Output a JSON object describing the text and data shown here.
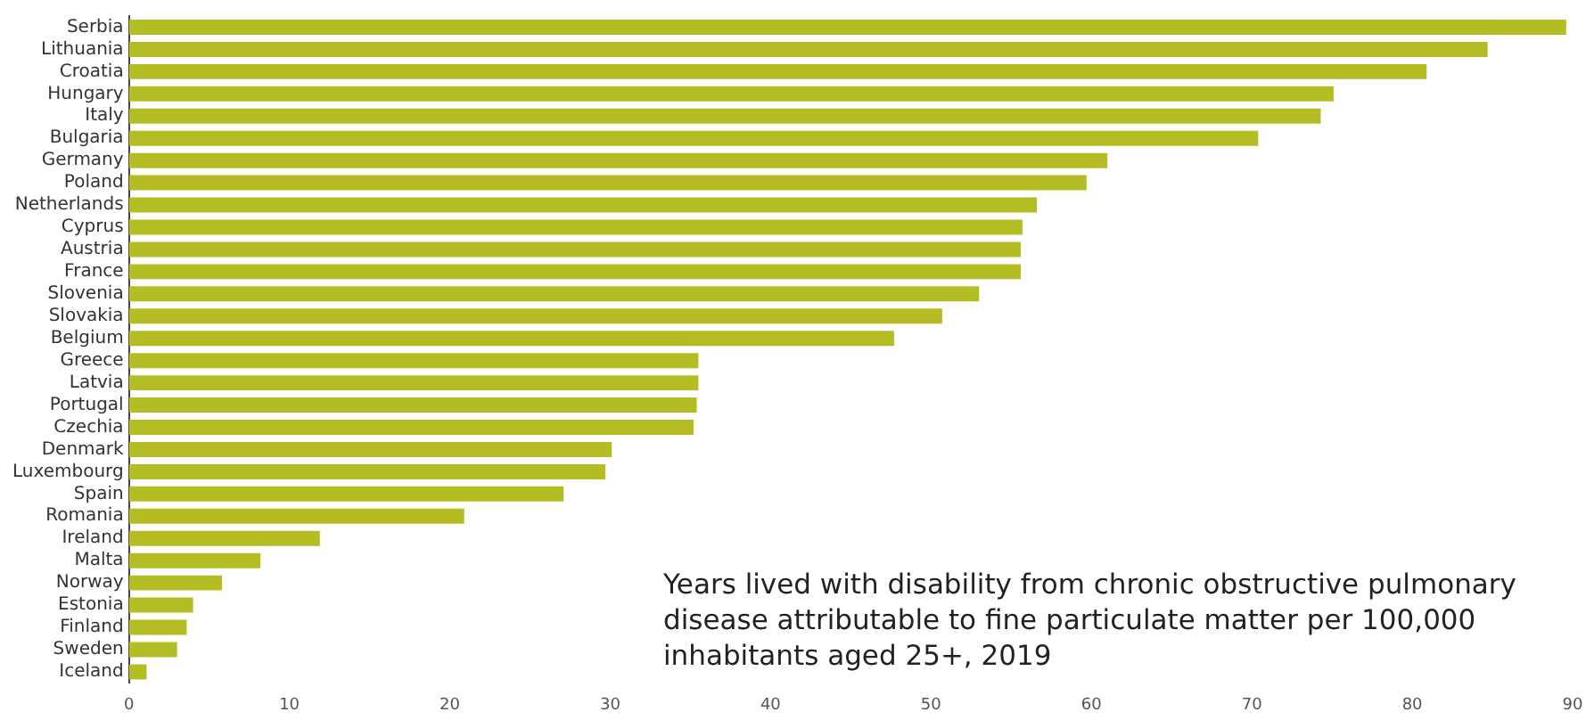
{
  "chart_data": {
    "type": "bar",
    "orientation": "horizontal",
    "categories": [
      "Serbia",
      "Lithuania",
      "Croatia",
      "Hungary",
      "Italy",
      "Bulgaria",
      "Germany",
      "Poland",
      "Netherlands",
      "Cyprus",
      "Austria",
      "France",
      "Slovenia",
      "Slovakia",
      "Belgium",
      "Greece",
      "Latvia",
      "Portugal",
      "Czechia",
      "Denmark",
      "Luxembourg",
      "Spain",
      "Romania",
      "Ireland",
      "Malta",
      "Norway",
      "Estonia",
      "Finland",
      "Sweden",
      "Iceland"
    ],
    "values": [
      89.6,
      84.7,
      80.9,
      75.1,
      74.3,
      70.4,
      61.0,
      59.7,
      56.6,
      55.7,
      55.6,
      55.6,
      53.0,
      50.7,
      47.7,
      35.5,
      35.5,
      35.4,
      35.2,
      30.1,
      29.7,
      27.1,
      20.9,
      11.9,
      8.2,
      5.8,
      4.0,
      3.6,
      3.0,
      1.1
    ],
    "color": "#b5bd24",
    "xlim": [
      0,
      90
    ],
    "xticks": [
      0,
      10,
      20,
      30,
      40,
      50,
      60,
      70,
      80,
      90
    ],
    "grid": false,
    "legend": false,
    "annotations": [
      "Years lived with disability from chronic obstructive pulmonary disease attributable to fine particulate matter per 100,000 inhabitants aged 25+, 2019"
    ]
  }
}
